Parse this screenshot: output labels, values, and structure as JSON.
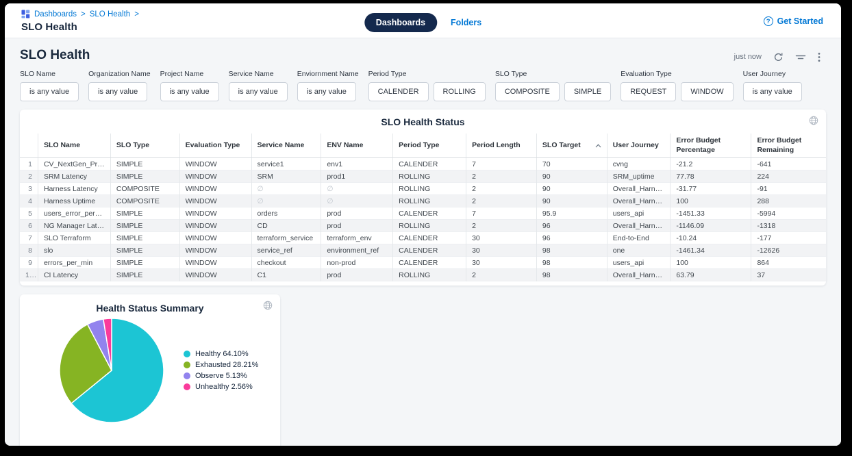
{
  "header": {
    "breadcrumb": {
      "items": [
        "Dashboards",
        "SLO Health"
      ],
      "separator": ">"
    },
    "title": "SLO Health",
    "tabs": [
      {
        "label": "Dashboards",
        "active": true
      },
      {
        "label": "Folders",
        "active": false
      }
    ],
    "get_started": "Get Started",
    "help_glyph": "?"
  },
  "toolbar": {
    "section_title": "SLO Health",
    "updated": "just now"
  },
  "icons": {
    "breadcrumb": "dashboards-grid-icon",
    "refresh": "↻",
    "filter": "filter-lines-icon",
    "kebab": "⋮",
    "globe": "🌐",
    "sort_asc": "^",
    "help": "?"
  },
  "filters": [
    {
      "label": "SLO Name",
      "options": [
        "is any value"
      ]
    },
    {
      "label": "Organization Name",
      "options": [
        "is any value"
      ]
    },
    {
      "label": "Project Name",
      "options": [
        "is any value"
      ]
    },
    {
      "label": "Service Name",
      "options": [
        "is any value"
      ]
    },
    {
      "label": "Enviornment Name",
      "options": [
        "is any value"
      ]
    },
    {
      "label": "Period Type",
      "options": [
        "CALENDER",
        "ROLLING"
      ]
    },
    {
      "label": "SLO Type",
      "options": [
        "COMPOSITE",
        "SIMPLE"
      ]
    },
    {
      "label": "Evaluation Type",
      "options": [
        "REQUEST",
        "WINDOW"
      ]
    },
    {
      "label": "User Journey",
      "options": [
        "is any value"
      ]
    }
  ],
  "table": {
    "title": "SLO Health Status",
    "sort_column": "SLO Target",
    "columns": [
      "SLO Name",
      "SLO Type",
      "Evaluation Type",
      "Service Name",
      "ENV Name",
      "Period Type",
      "Period Length",
      "SLO Target",
      "User Journey",
      "Error Budget Percentage",
      "Error Budget Remaining"
    ],
    "rows": [
      [
        "CV_NextGen_Prod",
        "SIMPLE",
        "WINDOW",
        "service1",
        "env1",
        "CALENDER",
        "7",
        "70",
        "cvng",
        "-21.2",
        "-641"
      ],
      [
        "SRM Latency",
        "SIMPLE",
        "WINDOW",
        "SRM",
        "prod1",
        "ROLLING",
        "2",
        "90",
        "SRM_uptime",
        "77.78",
        "224"
      ],
      [
        "Harness Latency",
        "COMPOSITE",
        "WINDOW",
        "∅",
        "∅",
        "ROLLING",
        "2",
        "90",
        "Overall_Harness",
        "-31.77",
        "-91"
      ],
      [
        "Harness Uptime",
        "COMPOSITE",
        "WINDOW",
        "∅",
        "∅",
        "ROLLING",
        "2",
        "90",
        "Overall_Harness",
        "100",
        "288"
      ],
      [
        "users_error_per_min",
        "SIMPLE",
        "WINDOW",
        "orders",
        "prod",
        "CALENDER",
        "7",
        "95.9",
        "users_api",
        "-1451.33",
        "-5994"
      ],
      [
        "NG Manager Latency",
        "SIMPLE",
        "WINDOW",
        "CD",
        "prod",
        "ROLLING",
        "2",
        "96",
        "Overall_Harness",
        "-1146.09",
        "-1318"
      ],
      [
        "SLO Terraform",
        "SIMPLE",
        "WINDOW",
        "terraform_service",
        "terraform_env",
        "CALENDER",
        "30",
        "96",
        "End-to-End",
        "-10.24",
        "-177"
      ],
      [
        "slo",
        "SIMPLE",
        "WINDOW",
        "service_ref",
        "environment_ref",
        "CALENDER",
        "30",
        "98",
        "one",
        "-1461.34",
        "-12626"
      ],
      [
        "errors_per_min",
        "SIMPLE",
        "WINDOW",
        "checkout",
        "non-prod",
        "CALENDER",
        "30",
        "98",
        "users_api",
        "100",
        "864"
      ],
      [
        "CI Latency",
        "SIMPLE",
        "WINDOW",
        "C1",
        "prod",
        "ROLLING",
        "2",
        "98",
        "Overall_Harness",
        "63.79",
        "37"
      ]
    ]
  },
  "chart_data": {
    "type": "pie",
    "title": "Health Status Summary",
    "labels": [
      "Healthy",
      "Exhausted",
      "Observe",
      "Unhealthy"
    ],
    "values": [
      64.1,
      28.21,
      5.13,
      2.56
    ],
    "colors": [
      "#1cc5d4",
      "#86b423",
      "#9283ee",
      "#fa3b9b"
    ],
    "legend": [
      "Healthy 64.10%",
      "Exhausted 28.21%",
      "Observe 5.13%",
      "Unhealthy 2.56%"
    ],
    "legend_position": "right",
    "start_angle_deg": 0,
    "direction": "clockwise"
  },
  "colors": {
    "accent_blue": "#0278d5",
    "navy_pill": "#14294d",
    "content_bg": "#f4f6f8",
    "stripe": "#f2f3f5"
  }
}
